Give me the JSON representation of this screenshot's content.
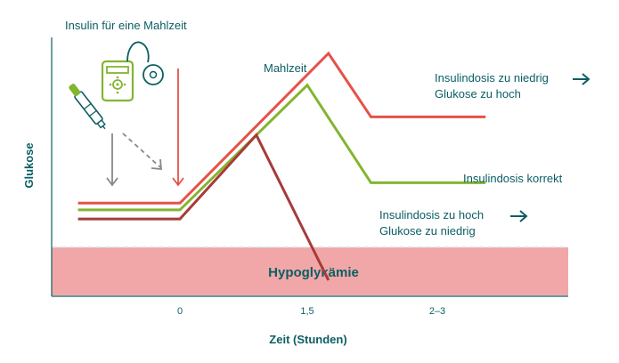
{
  "colors": {
    "teal": "#0b5e63",
    "red": "#e5524a",
    "green": "#83b530",
    "darkred": "#a83a3a",
    "hypo_zone": "#f1a7a8",
    "gray_arrow": "#888888",
    "device_green": "#83b530"
  },
  "icons": {
    "pump": "insulin-pump-icon",
    "pen": "insulin-pen-icon"
  },
  "chart_data": {
    "type": "line",
    "title": "",
    "xlabel": "Zeit (Stunden)",
    "ylabel": "Glukose",
    "x_ticks": [
      "0",
      "1,5",
      "2–3"
    ],
    "header_label": "Insulin für eine Mahlzeit",
    "meal_label": "Mahlzeit",
    "zone_label": "Hypoglykämie",
    "grid": false,
    "legend": "none",
    "series": [
      {
        "id": "too-low",
        "label_lines": [
          "Insulindosis zu niedrig",
          "Glukose zu hoch"
        ],
        "show_arrow": true,
        "color": "#e5524a",
        "points": [
          [
            -1.2,
            0.34
          ],
          [
            0,
            0.34
          ],
          [
            1.75,
            1.0
          ],
          [
            2.25,
            0.72
          ],
          [
            3.6,
            0.72
          ]
        ]
      },
      {
        "id": "correct",
        "label_lines": [
          "Insulindosis korrekt"
        ],
        "show_arrow": false,
        "color": "#83b530",
        "points": [
          [
            -1.2,
            0.31
          ],
          [
            0,
            0.31
          ],
          [
            1.5,
            0.86
          ],
          [
            2.25,
            0.43
          ],
          [
            3.6,
            0.43
          ]
        ]
      },
      {
        "id": "too-high",
        "label_lines": [
          "Insulindosis zu hoch",
          "Glukose zu niedrig"
        ],
        "show_arrow": true,
        "color": "#a83a3a",
        "points": [
          [
            -1.2,
            0.27
          ],
          [
            0,
            0.27
          ],
          [
            0.9,
            0.64
          ],
          [
            1.75,
            0.0
          ]
        ]
      }
    ],
    "zone": {
      "ymin": -0.03,
      "ymax": 0.2
    }
  }
}
